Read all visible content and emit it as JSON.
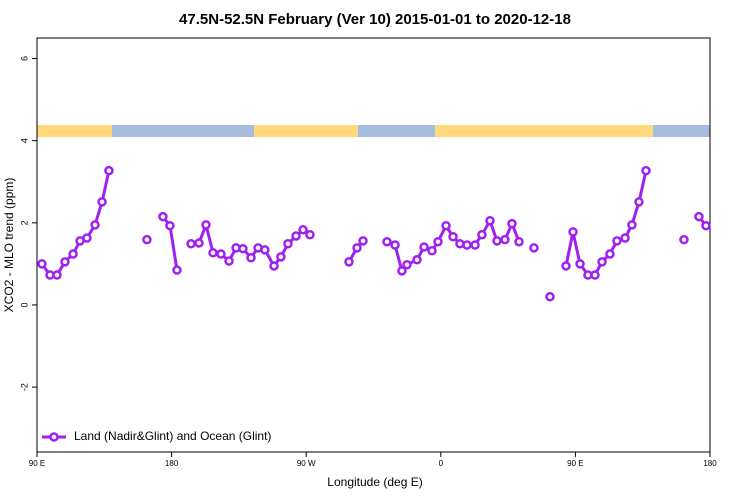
{
  "chart_data": {
    "type": "line",
    "title": "47.5N-52.5N February (Ver 10)   2015-01-01 to 2020-12-18",
    "x_label": "Longitude (deg E)",
    "y_label": "XCO2 - MLO trend (ppm)",
    "xlim": [
      90,
      540
    ],
    "ylim": [
      -3.58,
      6.5
    ],
    "xticks": [
      {
        "value": 90,
        "label": "90 E"
      },
      {
        "value": 180,
        "label": "180"
      },
      {
        "value": 270,
        "label": "90 W"
      },
      {
        "value": 360,
        "label": "0"
      },
      {
        "value": 450,
        "label": "90 E"
      },
      {
        "value": 540,
        "label": "180"
      }
    ],
    "yticks": [
      -2,
      0,
      2,
      4,
      6
    ],
    "legend": "bottom-left",
    "x": [
      93.3,
      98.7,
      103.4,
      108.7,
      114.1,
      118.8,
      123.4,
      128.8,
      133.5,
      138.1,
      null,
      163.5,
      null,
      174.2,
      178.9,
      183.6,
      null,
      193.0,
      198.3,
      203.0,
      207.7,
      213.0,
      218.4,
      223.1,
      227.7,
      233.1,
      237.8,
      242.4,
      248.5,
      253.1,
      257.8,
      263.2,
      267.9,
      272.5,
      null,
      298.6,
      304.0,
      308.0,
      null,
      324.0,
      329.4,
      334.0,
      337.4,
      344.1,
      348.8,
      354.1,
      358.1,
      363.5,
      368.2,
      372.8,
      377.5,
      382.9,
      387.5,
      392.9,
      397.6,
      402.9,
      407.6,
      412.3,
      null,
      422.3,
      null,
      433.0,
      null,
      443.7,
      448.4,
      453.1,
      458.4,
      463.1,
      467.8,
      473.1,
      477.8,
      483.2,
      487.8,
      492.5,
      497.2,
      null,
      522.6,
      null,
      532.6,
      537.3
    ],
    "series": [
      {
        "name": "Land (Nadir&Glint) and Ocean (Glint)",
        "color": "#a020f0",
        "values": [
          1.0,
          0.73,
          0.73,
          1.05,
          1.24,
          1.56,
          1.63,
          1.95,
          2.51,
          3.27,
          null,
          1.59,
          null,
          2.15,
          1.93,
          0.85,
          null,
          1.49,
          1.51,
          1.95,
          1.27,
          1.24,
          1.07,
          1.39,
          1.37,
          1.15,
          1.39,
          1.34,
          0.95,
          1.17,
          1.49,
          1.68,
          1.83,
          1.71,
          null,
          1.05,
          1.39,
          1.56,
          null,
          1.54,
          1.46,
          0.83,
          0.98,
          1.1,
          1.41,
          1.32,
          1.54,
          1.93,
          1.66,
          1.49,
          1.46,
          1.46,
          1.71,
          2.05,
          1.56,
          1.59,
          1.98,
          1.54,
          null,
          1.39,
          null,
          0.2,
          null,
          0.95,
          1.78,
          1.0,
          0.73,
          0.73,
          1.05,
          1.24,
          1.56,
          1.63,
          1.95,
          2.51,
          3.27,
          null,
          1.59,
          null,
          2.15,
          1.93
        ]
      }
    ]
  }
}
